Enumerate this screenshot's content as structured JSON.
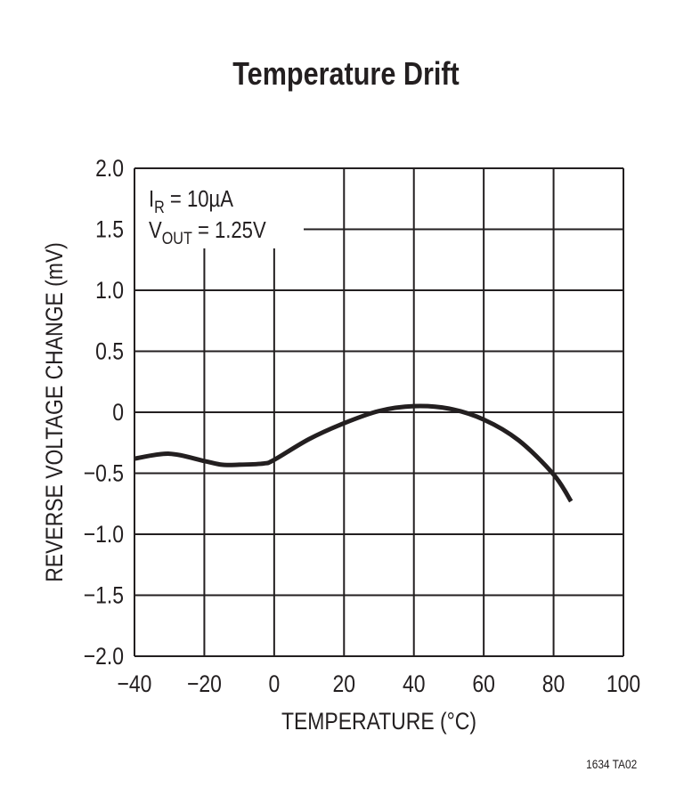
{
  "chart_data": {
    "type": "line",
    "title": "Temperature Drift",
    "xlabel": "TEMPERATURE (°C)",
    "ylabel": "REVERSE VOLTAGE CHANGE (mV)",
    "xlim": [
      -40,
      100
    ],
    "ylim": [
      -2.0,
      2.0
    ],
    "x_ticks": [
      "−40",
      "−20",
      "0",
      "20",
      "40",
      "60",
      "80",
      "100"
    ],
    "y_ticks": [
      "2.0",
      "1.5",
      "1.0",
      "0.5",
      "0",
      "−0.5",
      "−1.0",
      "−1.5",
      "−2.0"
    ],
    "grid": true,
    "annotation": {
      "line1_main": "I",
      "line1_sub": "R",
      "line1_rest": " = 10µA",
      "line2_main": "V",
      "line2_sub": "OUT",
      "line2_rest": " = 1.25V"
    },
    "series": [
      {
        "x": [
          -40,
          -30,
          -20,
          -15,
          -10,
          -3,
          0,
          10,
          20,
          30,
          40,
          50,
          60,
          70,
          80,
          85
        ],
        "y": [
          -0.38,
          -0.34,
          -0.4,
          -0.43,
          -0.43,
          -0.42,
          -0.39,
          -0.22,
          -0.09,
          0.01,
          0.05,
          0.03,
          -0.06,
          -0.23,
          -0.51,
          -0.73
        ],
        "color": "#231f20"
      }
    ]
  },
  "footnote": "1634 TA02"
}
